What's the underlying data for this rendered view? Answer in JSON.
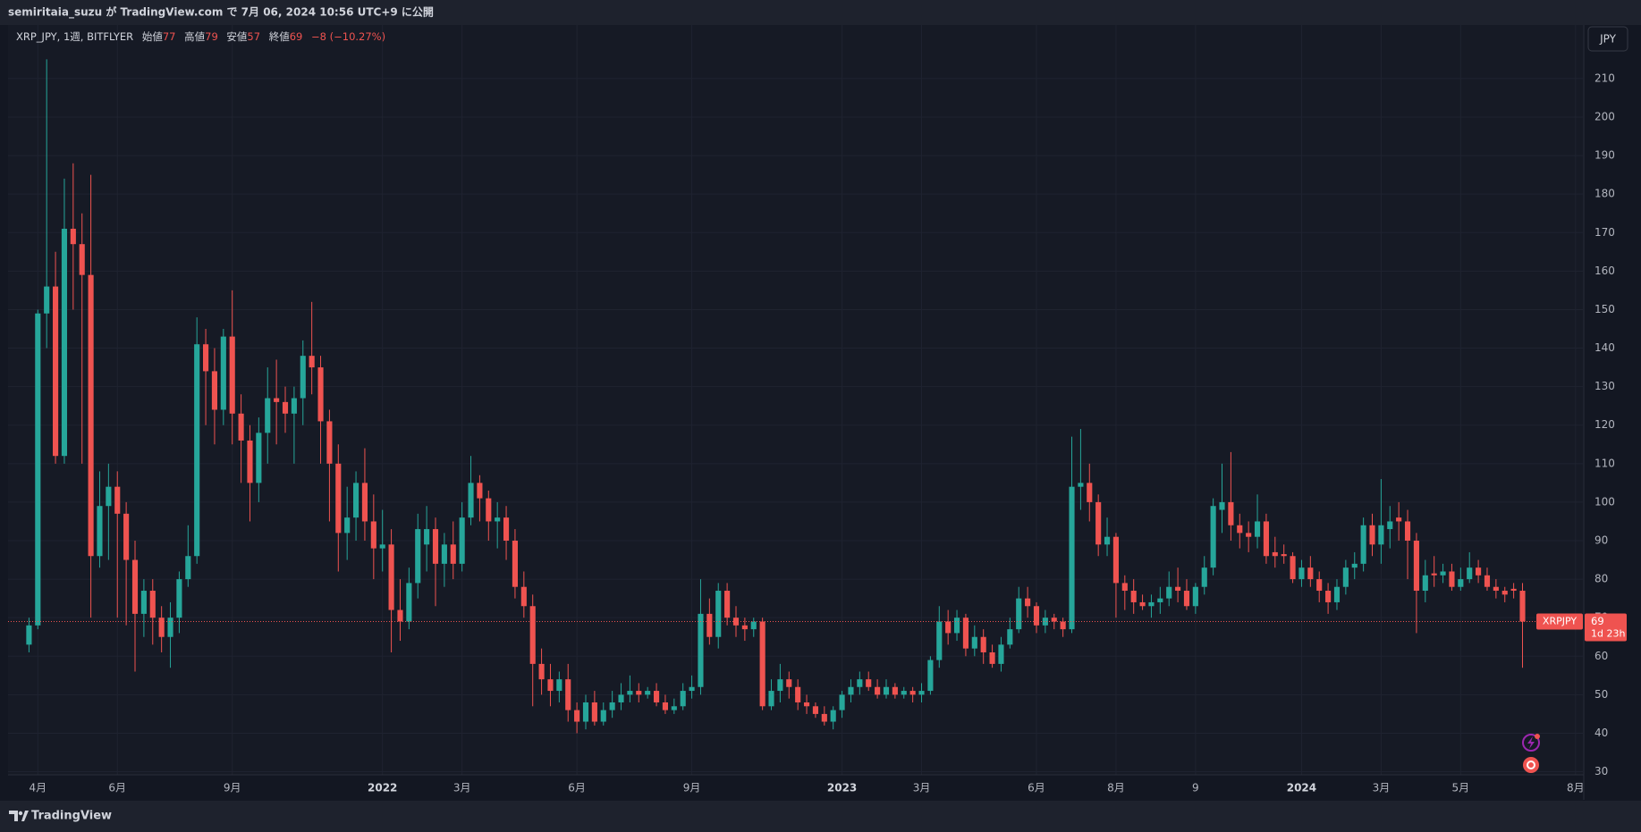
{
  "header": {
    "text": "semiritaia_suzu が TradingView.com で 7月 06, 2024 10:56 UTC+9 に公開"
  },
  "footer": {
    "brand": "TradingView"
  },
  "chart_data": {
    "type": "candlestick",
    "symbol_label": "XRP_JPY, 1週, BITFLYER",
    "legend_labels": {
      "open": "始値",
      "high": "高値",
      "low": "安値",
      "close": "終値"
    },
    "change_label": "−8 (−10.27%)",
    "currency": "JPY",
    "countdown": "1d 23h",
    "grid": true,
    "xlim": [
      -2.37,
      175.83
    ],
    "ylim": [
      29.2,
      223.9
    ],
    "xticks": [
      {
        "value": 1,
        "label": "4月"
      },
      {
        "value": 10,
        "label": "6月"
      },
      {
        "value": 23,
        "label": "9月"
      },
      {
        "value": 40,
        "label": "2022"
      },
      {
        "value": 49,
        "label": "3月"
      },
      {
        "value": 62,
        "label": "6月"
      },
      {
        "value": 75,
        "label": "9月"
      },
      {
        "value": 92,
        "label": "2023"
      },
      {
        "value": 101,
        "label": "3月"
      },
      {
        "value": 114,
        "label": "6月"
      },
      {
        "value": 123,
        "label": "8月"
      },
      {
        "value": 132,
        "label": "9"
      },
      {
        "value": 144,
        "label": "2024"
      },
      {
        "value": 153,
        "label": "3月"
      },
      {
        "value": 162,
        "label": "5月"
      },
      {
        "value": 175,
        "label": "8月"
      }
    ],
    "yticks": [
      30,
      40,
      50,
      60,
      70,
      80,
      90,
      100,
      110,
      120,
      130,
      140,
      150,
      160,
      170,
      180,
      190,
      200,
      210
    ],
    "series": [
      {
        "name": "XRPJPY",
        "up_color": "#26a69a",
        "down_color": "#ef5350",
        "open": [
          63,
          68,
          149,
          156,
          112,
          171,
          167,
          159,
          86,
          99,
          104,
          97,
          85,
          71,
          77,
          70,
          65,
          70,
          80,
          86,
          141,
          134,
          124,
          143,
          123,
          116,
          105,
          118,
          127,
          126,
          123,
          127,
          138,
          135,
          121,
          110,
          92,
          96,
          105,
          95,
          88,
          89,
          72,
          69,
          79,
          89,
          93,
          84,
          89,
          84,
          96,
          105,
          101,
          95,
          96,
          90,
          78,
          73,
          58,
          54,
          51,
          54,
          46,
          43,
          48,
          43,
          46,
          48,
          50,
          51,
          50,
          51,
          48,
          46,
          47,
          51,
          52,
          71,
          65,
          77,
          70,
          68,
          67,
          69,
          47,
          51,
          54,
          52,
          48,
          47,
          45,
          43,
          46,
          50,
          52,
          54,
          52,
          50,
          52,
          50,
          51,
          50,
          51,
          59,
          69,
          66,
          70,
          62,
          65,
          61,
          58,
          63,
          67,
          75,
          73,
          68,
          70,
          69,
          67,
          104,
          105,
          100,
          89,
          91,
          79,
          77,
          74,
          73,
          74,
          75,
          78,
          77,
          73,
          78,
          83,
          98,
          100,
          94,
          92,
          91,
          95,
          87,
          86.5,
          86,
          80,
          83,
          80,
          77,
          74,
          78,
          83,
          84,
          94,
          89,
          93,
          96,
          95,
          90,
          77,
          81.5,
          81,
          82,
          78,
          80,
          83,
          81,
          78,
          77,
          77.5,
          77
        ],
        "high": [
          70,
          150,
          215,
          165,
          184,
          188,
          175,
          185,
          108,
          110,
          108,
          100,
          90,
          80,
          80,
          73,
          74,
          82,
          94,
          148,
          145,
          140,
          145,
          155,
          128,
          120,
          122,
          135,
          137,
          130,
          130,
          142,
          152,
          138,
          124,
          115,
          104,
          108,
          114,
          102,
          98,
          93,
          80,
          83,
          97,
          99,
          96,
          92,
          95,
          100,
          112,
          107,
          103,
          100,
          99,
          93,
          82,
          76,
          62,
          58,
          56,
          58,
          48,
          50,
          51,
          48,
          51,
          53,
          55,
          53,
          52,
          53,
          50,
          49,
          53,
          55,
          80,
          75,
          79,
          79,
          73,
          70,
          70,
          70,
          54,
          58,
          56,
          54,
          50,
          48,
          47,
          47,
          51,
          54,
          56,
          56,
          54,
          54,
          53,
          52,
          52,
          53,
          60,
          73,
          72,
          72,
          71,
          68,
          67,
          63,
          65,
          70,
          78,
          78,
          74,
          72,
          71,
          70,
          117,
          119,
          110,
          102,
          96,
          92,
          81,
          80,
          76,
          76,
          78,
          82,
          83,
          80,
          79,
          86,
          101,
          110,
          113,
          97,
          95,
          102,
          97,
          91,
          89,
          87,
          85,
          86,
          82,
          79,
          80,
          85,
          87,
          96,
          97,
          106,
          99,
          100,
          98,
          92,
          85,
          86,
          84,
          84,
          83,
          87,
          85,
          83,
          80,
          78,
          79,
          79
        ],
        "low": [
          61,
          67,
          140,
          110,
          110,
          150,
          110,
          70,
          83,
          85,
          70,
          68,
          56,
          65,
          63,
          61,
          57,
          66,
          78,
          84,
          120,
          115,
          120,
          115,
          105,
          95,
          100,
          110,
          115,
          118,
          110,
          120,
          128,
          110,
          95,
          82,
          85,
          90,
          90,
          80,
          82,
          61,
          64,
          67,
          75,
          82,
          73,
          78,
          80,
          82,
          94,
          95,
          90,
          88,
          85,
          75,
          70,
          47,
          50,
          47,
          48,
          43,
          40,
          41,
          42,
          42,
          44,
          46,
          48,
          48,
          49,
          47,
          45,
          45,
          46,
          49,
          50,
          63,
          62,
          68,
          65,
          64,
          65,
          46,
          46,
          48,
          49,
          46,
          45,
          44,
          42,
          41,
          44,
          48,
          50,
          51,
          49,
          49,
          49,
          49,
          48,
          48,
          50,
          57,
          63,
          64,
          60,
          60,
          58,
          57,
          56,
          62,
          66,
          70,
          66,
          66,
          67,
          65,
          66,
          98,
          95,
          86,
          86,
          70,
          72,
          71,
          72,
          70,
          71,
          73,
          74,
          72,
          71,
          76,
          81,
          92,
          90,
          88,
          87,
          88,
          84,
          83,
          84,
          79,
          78,
          78,
          74,
          71,
          72,
          76,
          80,
          82,
          86,
          84,
          88,
          90,
          80,
          66,
          74,
          78,
          79,
          77,
          77,
          79,
          79,
          77,
          75,
          74,
          75,
          57
        ],
        "close": [
          68,
          149,
          156,
          112,
          171,
          167,
          159,
          86,
          99,
          104,
          97,
          85,
          71,
          77,
          70,
          65,
          70,
          80,
          86,
          141,
          134,
          124,
          143,
          123,
          116,
          105,
          118,
          127,
          126,
          123,
          127,
          138,
          135,
          121,
          110,
          92,
          96,
          105,
          95,
          88,
          89,
          72,
          69,
          79,
          93,
          93,
          84,
          89,
          84,
          96,
          105,
          101,
          95,
          96,
          90,
          78,
          73,
          58,
          54,
          51,
          54,
          46,
          43,
          48,
          43,
          46,
          48,
          50,
          51,
          50,
          51,
          48,
          46,
          47,
          51,
          52,
          71,
          65,
          77,
          70,
          68,
          67,
          69,
          47,
          51,
          54,
          52,
          48,
          47,
          45,
          43,
          46,
          50,
          52,
          54,
          52,
          50,
          52,
          50,
          51,
          50,
          51,
          59,
          69,
          66,
          70,
          62,
          65,
          61,
          58,
          63,
          67,
          75,
          73,
          68,
          70,
          69,
          67,
          104,
          105,
          100,
          89,
          91,
          79,
          77,
          74,
          73,
          74,
          75,
          78,
          77,
          73,
          78,
          83,
          99,
          100,
          94,
          92,
          91,
          95,
          86,
          86,
          86,
          80,
          83,
          80,
          77,
          74,
          78,
          83,
          84,
          94,
          89,
          94,
          95,
          95,
          90,
          77,
          81,
          81,
          82,
          78,
          80,
          83,
          81,
          78,
          77,
          76,
          77,
          69
        ]
      }
    ]
  }
}
